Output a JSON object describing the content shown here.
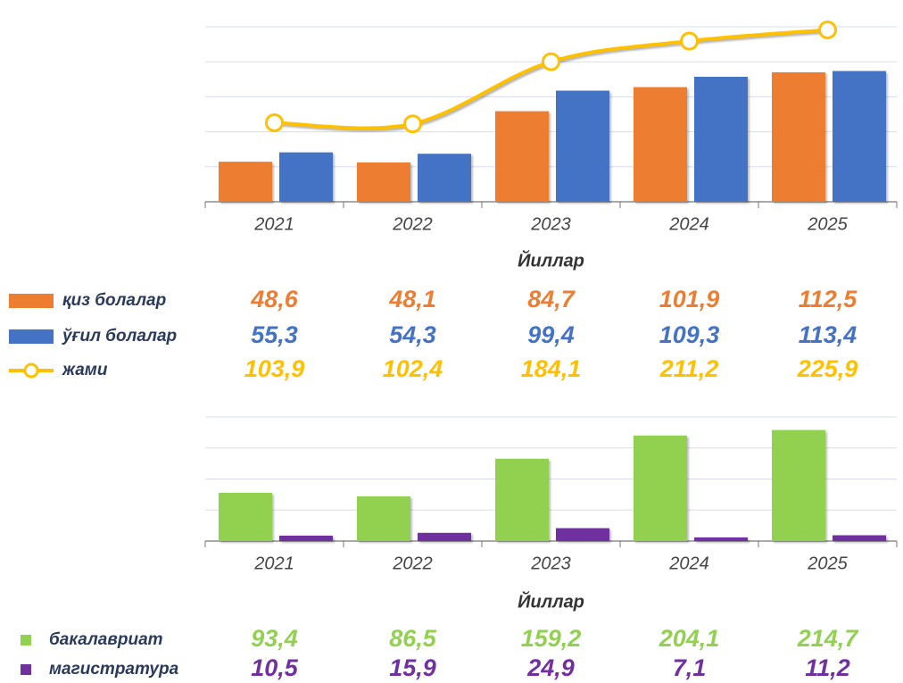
{
  "chart_data": [
    {
      "type": "bar",
      "x_label": "Йиллар",
      "categories": [
        "2021",
        "2022",
        "2023",
        "2024",
        "2025"
      ],
      "ylim": [
        20,
        145
      ],
      "yticks": [
        20,
        45,
        70,
        95,
        120,
        145
      ],
      "y2lim": [
        0,
        230
      ],
      "grid": true,
      "series": [
        {
          "name": "қиз болалар",
          "color": "#ed7d31",
          "values": [
            48.6,
            48.1,
            84.7,
            101.9,
            112.5
          ],
          "value_labels": [
            "48,6",
            "48,1",
            "84,7",
            "101,9",
            "112,5"
          ]
        },
        {
          "name": "ўғил болалар",
          "color": "#4472c4",
          "values": [
            55.3,
            54.3,
            99.4,
            109.3,
            113.4
          ],
          "value_labels": [
            "55,3",
            "54,3",
            "99,4",
            "109,3",
            "113,4"
          ]
        },
        {
          "name": "жами",
          "type": "line",
          "axis": "y2",
          "color": "#ffc000",
          "values": [
            103.9,
            102.4,
            184.1,
            211.2,
            225.9
          ],
          "value_labels": [
            "103,9",
            "102,4",
            "184,1",
            "211,2",
            "225,9"
          ]
        }
      ]
    },
    {
      "type": "bar",
      "x_label": "Йиллар",
      "categories": [
        "2021",
        "2022",
        "2023",
        "2024",
        "2025"
      ],
      "ylim": [
        0,
        240
      ],
      "yticks": [
        0,
        60,
        120,
        180,
        240
      ],
      "grid": true,
      "series": [
        {
          "name": "бакалавриат",
          "color": "#92d050",
          "values": [
            93.4,
            86.5,
            159.2,
            204.1,
            214.7
          ],
          "value_labels": [
            "93,4",
            "86,5",
            "159,2",
            "204,1",
            "214,7"
          ]
        },
        {
          "name": "магистратура",
          "color": "#7030a0",
          "values": [
            10.5,
            15.9,
            24.9,
            7.1,
            11.2
          ],
          "value_labels": [
            "10,5",
            "15,9",
            "24,9",
            "7,1",
            "11,2"
          ]
        }
      ]
    }
  ]
}
